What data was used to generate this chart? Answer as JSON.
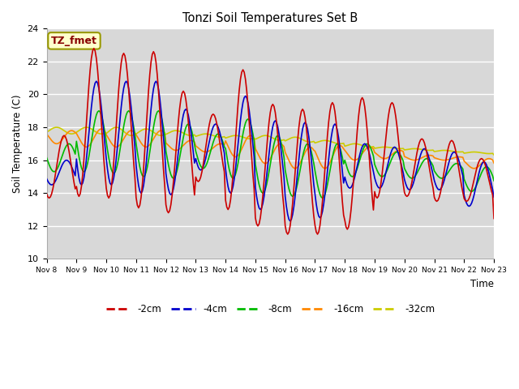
{
  "title": "Tonzi Soil Temperatures Set B",
  "xlabel": "Time",
  "ylabel": "Soil Temperature (C)",
  "ylim": [
    10,
    24
  ],
  "background_color": "#d8d8d8",
  "plot_bg_color": "#d8d8d8",
  "outer_bg_color": "#ffffff",
  "grid_color": "white",
  "series": {
    "-2cm": {
      "color": "#cc0000",
      "lw": 1.2
    },
    "-4cm": {
      "color": "#0000cc",
      "lw": 1.2
    },
    "-8cm": {
      "color": "#00bb00",
      "lw": 1.2
    },
    "-16cm": {
      "color": "#ff8800",
      "lw": 1.2
    },
    "-32cm": {
      "color": "#cccc00",
      "lw": 1.2
    }
  },
  "annotation": {
    "text": "TZ_fmet",
    "fontsize": 9,
    "text_color": "#880000",
    "bg_color": "#ffffcc",
    "border_color": "#999900"
  },
  "xtick_labels": [
    "Nov 8",
    "Nov 9",
    "Nov 10",
    "Nov 11",
    "Nov 12",
    "Nov 13",
    "Nov 14",
    "Nov 15",
    "Nov 16",
    "Nov 17",
    "Nov 18",
    "Nov 19",
    "Nov 20",
    "Nov 21",
    "Nov 22",
    "Nov 23"
  ],
  "xtick_positions": [
    0,
    24,
    48,
    72,
    96,
    120,
    144,
    168,
    192,
    216,
    240,
    264,
    288,
    312,
    336,
    360
  ],
  "ytick_positions": [
    10,
    12,
    14,
    16,
    18,
    20,
    22,
    24
  ],
  "day_maxes": {
    "-2cm": [
      17.5,
      22.8,
      22.5,
      22.6,
      20.2,
      18.8,
      21.5,
      19.4,
      19.1,
      19.5,
      19.8,
      19.5,
      17.3,
      17.2,
      16.1,
      16.0
    ],
    "-4cm": [
      16.0,
      20.8,
      20.8,
      20.8,
      19.1,
      18.2,
      19.9,
      18.4,
      18.3,
      18.2,
      17.0,
      16.8,
      16.7,
      16.5,
      15.9,
      15.7
    ],
    "-8cm": [
      17.0,
      19.0,
      19.0,
      19.0,
      18.2,
      17.6,
      18.5,
      17.5,
      17.0,
      17.0,
      17.0,
      16.5,
      16.1,
      15.8,
      15.6,
      15.5
    ],
    "-16cm": [
      17.8,
      17.9,
      17.8,
      17.8,
      17.2,
      17.0,
      17.5,
      17.0,
      16.8,
      16.9,
      16.8,
      16.6,
      16.3,
      16.2,
      16.1,
      16.0
    ],
    "-32cm": [
      18.0,
      18.0,
      18.0,
      17.9,
      17.8,
      17.6,
      17.5,
      17.5,
      17.4,
      17.2,
      17.0,
      16.8,
      16.7,
      16.6,
      16.5,
      16.4
    ]
  },
  "day_mins": {
    "-2cm": [
      13.7,
      13.8,
      13.7,
      13.1,
      12.8,
      14.7,
      13.0,
      12.0,
      11.5,
      11.5,
      11.8,
      13.7,
      13.8,
      13.5,
      13.5,
      12.2
    ],
    "-4cm": [
      14.5,
      14.5,
      14.5,
      14.0,
      13.9,
      15.4,
      14.0,
      13.0,
      12.3,
      12.5,
      14.3,
      14.3,
      14.2,
      14.2,
      13.2,
      13.1
    ],
    "-8cm": [
      15.3,
      15.3,
      15.2,
      15.0,
      14.9,
      15.5,
      14.9,
      14.0,
      13.8,
      13.7,
      15.0,
      15.0,
      14.9,
      14.9,
      14.1,
      14.0
    ],
    "-16cm": [
      17.0,
      16.8,
      16.8,
      16.8,
      16.6,
      16.5,
      16.2,
      15.8,
      15.5,
      15.5,
      16.0,
      16.1,
      16.0,
      16.0,
      15.5,
      15.3
    ],
    "-32cm": [
      17.6,
      17.6,
      17.5,
      17.5,
      17.5,
      17.4,
      17.3,
      17.2,
      17.1,
      17.0,
      16.8,
      16.7,
      16.6,
      16.5,
      16.4,
      16.3
    ]
  },
  "phase_offsets": {
    "-2cm": 8,
    "-4cm": 10,
    "-8cm": 12,
    "-16cm": 14,
    "-32cm": 2
  }
}
